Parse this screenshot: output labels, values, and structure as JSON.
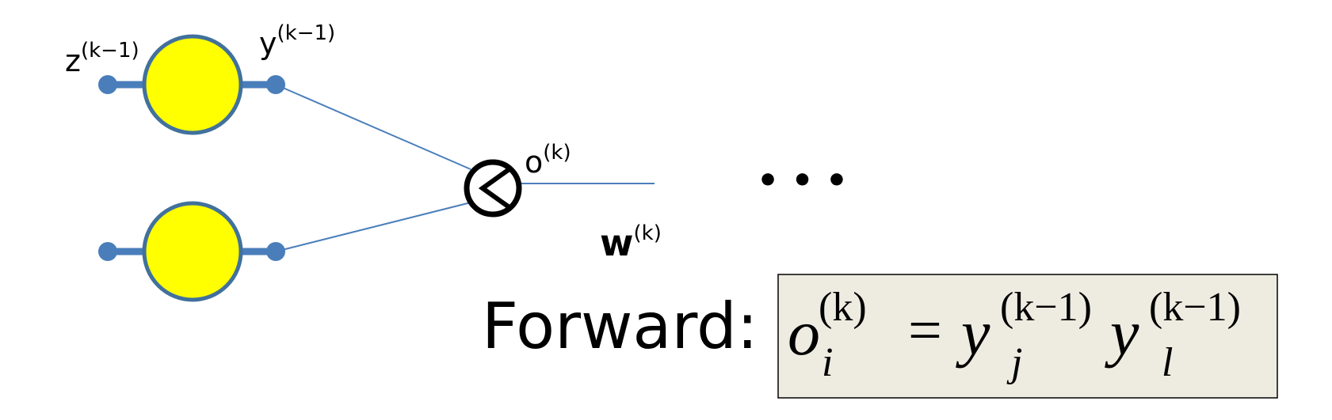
{
  "labels": {
    "z_base": "z",
    "z_sup": "(k−1)",
    "y_base": "y",
    "y_sup": "(k−1)",
    "o_base": "o",
    "o_sup": "(k)",
    "w_base": "w",
    "w_sup": "(k)",
    "ellipsis": "• • •"
  },
  "equation": {
    "prefix": "Forward:",
    "lhs_base": "o",
    "lhs_sub": "i",
    "lhs_sup": "(k)",
    "eq": "=",
    "t1_base": "y",
    "t1_sub": "j",
    "t1_sup": "(k−1)",
    "t2_base": "y",
    "t2_sub": "l",
    "t2_sup": "(k−1)"
  },
  "colors": {
    "neuron_fill": "#ffff00",
    "neuron_stroke": "#41719c",
    "connector": "#4a7ebb",
    "edge": "#4a7ebb",
    "product_node": "#000000",
    "formula_box_fill": "#eeece1",
    "formula_box_stroke": "#000000"
  },
  "icons": {
    "product_node": "multiply-node-icon",
    "neuron": "neuron-circle-icon"
  }
}
